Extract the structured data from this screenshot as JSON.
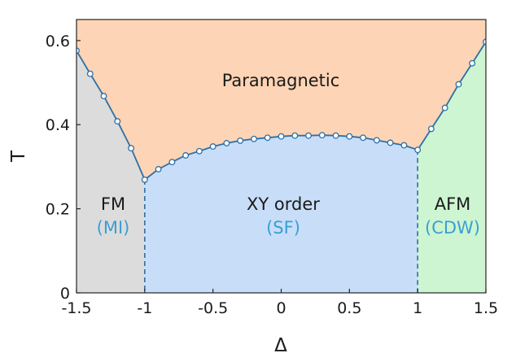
{
  "chart_data": {
    "type": "line",
    "title": "",
    "xlabel": "Δ",
    "ylabel": "T",
    "xlim": [
      -1.5,
      1.5
    ],
    "ylim": [
      0,
      0.65
    ],
    "x_ticks": [
      -1.5,
      -1,
      -0.5,
      0,
      0.5,
      1,
      1.5
    ],
    "x_tick_labels": [
      "-1.5",
      "-1",
      "-0.5",
      "0",
      "0.5",
      "1",
      "1.5"
    ],
    "y_ticks": [
      0,
      0.2,
      0.4,
      0.6
    ],
    "y_tick_labels": [
      "0",
      "0.2",
      "0.4",
      "0.6"
    ],
    "grid": false,
    "colors": {
      "paramagnetic": "#fdd4b5",
      "fm": "#dcdcdc",
      "xy": "#c8def8",
      "afm": "#cdf5d1",
      "line": "#2d6fa7",
      "subtitle": "#3a9fd4"
    },
    "phase_boundary": {
      "x": [
        -1.5,
        -1.4,
        -1.3,
        -1.2,
        -1.1,
        -1.0,
        -0.9,
        -0.8,
        -0.7,
        -0.6,
        -0.5,
        -0.4,
        -0.3,
        -0.2,
        -0.1,
        0.0,
        0.1,
        0.2,
        0.3,
        0.4,
        0.5,
        0.6,
        0.7,
        0.8,
        0.9,
        1.0,
        1.1,
        1.2,
        1.3,
        1.4,
        1.5
      ],
      "y": [
        0.576,
        0.521,
        0.468,
        0.408,
        0.344,
        0.269,
        0.294,
        0.311,
        0.327,
        0.337,
        0.348,
        0.356,
        0.362,
        0.366,
        0.369,
        0.372,
        0.374,
        0.374,
        0.375,
        0.374,
        0.372,
        0.369,
        0.363,
        0.357,
        0.351,
        0.34,
        0.39,
        0.44,
        0.496,
        0.546,
        0.597
      ]
    },
    "vertical_boundaries": [
      {
        "x": -1.0,
        "y_end": 0.269
      },
      {
        "x": 1.0,
        "y_end": 0.34
      }
    ],
    "regions": {
      "paramagnetic": {
        "label": "Paramagnetic",
        "x": 0.0,
        "y": 0.49
      },
      "fm": {
        "label": "FM",
        "sub": "(MI)",
        "x": -1.27
      },
      "xy": {
        "label": "XY order",
        "sub": "(SF)",
        "x": 0.0
      },
      "afm": {
        "label": "AFM",
        "sub": "(CDW)",
        "x": 1.26
      }
    }
  }
}
